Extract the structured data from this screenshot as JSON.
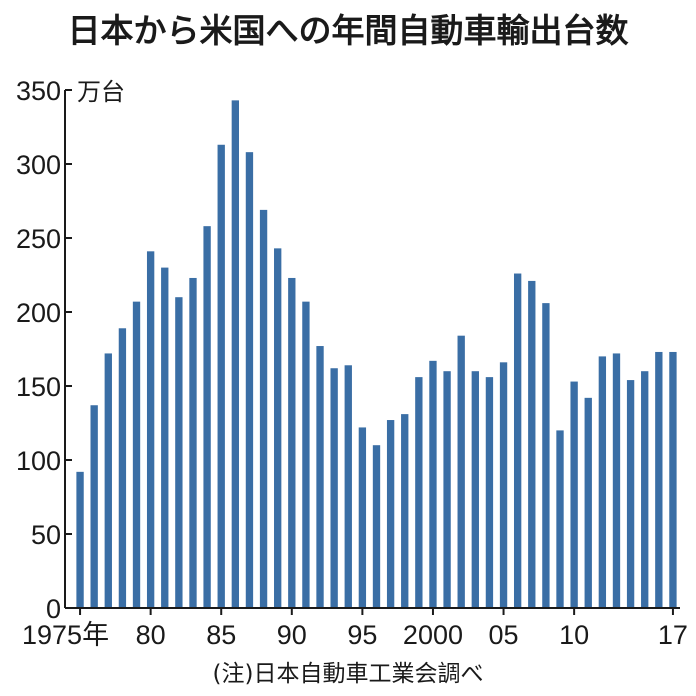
{
  "chart_data": {
    "type": "bar",
    "title": "日本から米国への年間自動車輸出台数",
    "unit": "万台",
    "ylim": [
      0,
      350
    ],
    "yticks": [
      0,
      50,
      100,
      150,
      200,
      250,
      300,
      350
    ],
    "grid": false,
    "bar_color": "#3a6ea5",
    "x": [
      1975,
      1976,
      1977,
      1978,
      1979,
      1980,
      1981,
      1982,
      1983,
      1984,
      1985,
      1986,
      1987,
      1988,
      1989,
      1990,
      1991,
      1992,
      1993,
      1994,
      1995,
      1996,
      1997,
      1998,
      1999,
      2000,
      2001,
      2002,
      2003,
      2004,
      2005,
      2006,
      2007,
      2008,
      2009,
      2010,
      2011,
      2012,
      2013,
      2014,
      2015,
      2016,
      2017
    ],
    "values": [
      92,
      137,
      172,
      189,
      207,
      241,
      230,
      210,
      223,
      258,
      313,
      343,
      308,
      269,
      243,
      223,
      207,
      177,
      162,
      164,
      122,
      110,
      127,
      131,
      156,
      167,
      160,
      184,
      160,
      156,
      166,
      226,
      221,
      206,
      120,
      153,
      142,
      170,
      172,
      154,
      160,
      173,
      173
    ],
    "xtick_labels": [
      {
        "year": 1975,
        "label": "1975年"
      },
      {
        "year": 1980,
        "label": "80"
      },
      {
        "year": 1985,
        "label": "85"
      },
      {
        "year": 1990,
        "label": "90"
      },
      {
        "year": 1995,
        "label": "95"
      },
      {
        "year": 2000,
        "label": "2000"
      },
      {
        "year": 2005,
        "label": "05"
      },
      {
        "year": 2010,
        "label": "10"
      },
      {
        "year": 2017,
        "label": "17"
      }
    ]
  },
  "source_note": "(注)日本自動車工業会調べ"
}
